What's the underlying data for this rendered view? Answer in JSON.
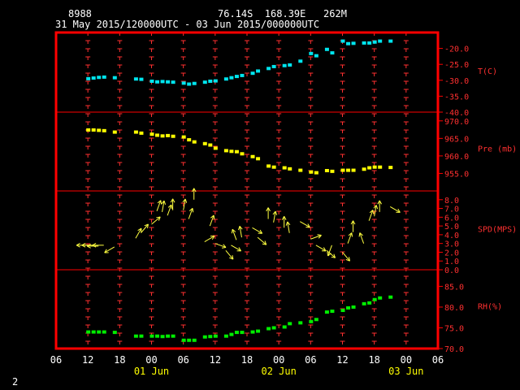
{
  "header": {
    "station_id": "8988",
    "location": "76.14S  168.39E   262M",
    "period": "31 May 2015/120000UTC - 03 Jun 2015/000000UTC"
  },
  "footer": {
    "page_number": "2"
  },
  "colors": {
    "frame": "#ff0000",
    "tick": "#ff3030",
    "temperature": "#00e5ee",
    "pressure": "#ffff00",
    "wind": "#ffff40",
    "humidity": "#00ee00",
    "axis_text": "#ff3030",
    "date_text": "#ffff00"
  },
  "x_axis": {
    "tick_labels": [
      "06",
      "12",
      "18",
      "00",
      "06",
      "12",
      "18",
      "00",
      "06",
      "12",
      "18",
      "00",
      "06"
    ],
    "tick_hours": [
      -6,
      0,
      6,
      12,
      18,
      24,
      30,
      36,
      42,
      48,
      54,
      60,
      66
    ],
    "date_labels": [
      {
        "text": "01 Jun",
        "hour": 12
      },
      {
        "text": "02 Jun",
        "hour": 36
      },
      {
        "text": "03 Jun",
        "hour": 60
      }
    ]
  },
  "chart_data": [
    {
      "type": "scatter",
      "ylabel": "T(C)",
      "ylim": [
        -40,
        -15
      ],
      "yticks": [
        -40,
        -35,
        -30,
        -25,
        -20
      ],
      "tick_labels": [
        "-40.0",
        "-35.0",
        "-30.0",
        "-25.0",
        "-20.0"
      ],
      "x": [
        0,
        1,
        2,
        3,
        5,
        9,
        10,
        12,
        13,
        14,
        15,
        16,
        18,
        19,
        20,
        22,
        23,
        24,
        26,
        27,
        28,
        29,
        31,
        32,
        34,
        35,
        37,
        38,
        40,
        42,
        43,
        45,
        46,
        48,
        49,
        50,
        52,
        53,
        54,
        55,
        57
      ],
      "y": [
        -29.5,
        -29.3,
        -29.1,
        -29.0,
        -29.2,
        -29.6,
        -29.7,
        -30.3,
        -30.5,
        -30.4,
        -30.5,
        -30.6,
        -30.9,
        -31.2,
        -31.0,
        -30.6,
        -30.3,
        -30.2,
        -29.6,
        -29.2,
        -28.8,
        -28.5,
        -27.8,
        -27.1,
        -26.3,
        -25.7,
        -25.4,
        -25.2,
        -24.0,
        -21.6,
        -22.3,
        -20.3,
        -21.4,
        -17.7,
        -18.5,
        -18.4,
        -18.3,
        -18.3,
        -18.0,
        -17.7,
        -17.7
      ]
    },
    {
      "type": "scatter",
      "ylabel": "Pre (mb)",
      "ylim": [
        950,
        972.5
      ],
      "yticks": [
        955,
        960,
        965,
        970
      ],
      "tick_labels": [
        "955.0",
        "960.0",
        "965.0",
        "970.0"
      ],
      "x": [
        0,
        1,
        2,
        3,
        5,
        9,
        10,
        12,
        13,
        14,
        15,
        16,
        18,
        19,
        20,
        22,
        23,
        24,
        26,
        27,
        28,
        29,
        31,
        32,
        34,
        35,
        37,
        38,
        40,
        42,
        43,
        45,
        46,
        48,
        49,
        50,
        52,
        53,
        54,
        55,
        57
      ],
      "y": [
        967.4,
        967.4,
        967.3,
        967.2,
        966.8,
        966.8,
        966.5,
        966.2,
        965.9,
        965.7,
        965.8,
        965.6,
        965.4,
        964.6,
        964.0,
        963.5,
        963.1,
        962.2,
        961.5,
        961.3,
        961.2,
        960.6,
        959.8,
        959.2,
        957.1,
        956.8,
        956.6,
        956.3,
        955.9,
        955.4,
        955.2,
        955.8,
        955.6,
        955.9,
        955.9,
        955.9,
        956.2,
        956.6,
        956.8,
        956.8,
        956.7
      ]
    },
    {
      "type": "scatter",
      "ylabel": "SPD(MPS)",
      "ylim": [
        0,
        9
      ],
      "yticks": [
        0,
        1,
        2,
        3,
        4,
        5,
        6,
        7,
        8
      ],
      "tick_labels": [
        "0.0",
        "1.0",
        "2.0",
        "3.0",
        "4.0",
        "5.0",
        "6.0",
        "7.0",
        "8.0"
      ],
      "x": [
        0,
        1,
        2,
        3,
        5,
        9,
        10,
        12,
        13,
        14,
        15,
        16,
        18,
        19,
        20,
        22,
        23,
        24,
        26,
        27,
        28,
        29,
        31,
        32,
        34,
        35,
        37,
        38,
        40,
        42,
        43,
        45,
        46,
        48,
        49,
        50,
        52,
        53,
        54,
        55,
        57
      ],
      "y": [
        2.8,
        2.8,
        2.7,
        2.8,
        2.6,
        3.6,
        4.2,
        5.2,
        6.7,
        6.6,
        6.2,
        6.8,
        6.8,
        5.8,
        8.0,
        3.2,
        5.0,
        3.0,
        2.2,
        2.8,
        3.4,
        3.7,
        4.8,
        3.7,
        5.8,
        5.4,
        4.8,
        4.2,
        5.5,
        3.5,
        2.8,
        2.2,
        2.8,
        2.0,
        3.0,
        4.3,
        3.0,
        5.6,
        6.1,
        6.6,
        7.2
      ],
      "dir_deg": [
        90,
        90,
        90,
        90,
        60,
        210,
        220,
        230,
        200,
        190,
        200,
        180,
        190,
        200,
        180,
        240,
        200,
        290,
        320,
        300,
        160,
        170,
        300,
        310,
        180,
        190,
        180,
        170,
        300,
        250,
        300,
        310,
        20,
        320,
        200,
        180,
        160,
        200,
        190,
        180,
        300
      ]
    },
    {
      "type": "scatter",
      "ylabel": "RH(%)",
      "ylim": [
        70,
        89
      ],
      "yticks": [
        70,
        75,
        80,
        85
      ],
      "tick_labels": [
        "70.0",
        "75.0",
        "80.0",
        "85.0"
      ],
      "x": [
        0,
        1,
        2,
        3,
        5,
        9,
        10,
        12,
        13,
        14,
        15,
        16,
        18,
        19,
        20,
        22,
        23,
        24,
        26,
        27,
        28,
        29,
        31,
        32,
        34,
        35,
        37,
        38,
        40,
        42,
        43,
        45,
        46,
        48,
        49,
        50,
        52,
        53,
        54,
        55,
        57
      ],
      "y": [
        74.0,
        74.0,
        74.0,
        74.0,
        73.9,
        73.0,
        73.0,
        73.0,
        73.0,
        72.9,
        73.0,
        73.0,
        72.0,
        72.0,
        72.0,
        72.8,
        72.9,
        73.0,
        73.0,
        73.4,
        73.9,
        73.9,
        74.0,
        74.2,
        74.8,
        75.0,
        75.2,
        76.0,
        76.2,
        76.5,
        77.0,
        78.8,
        79.0,
        79.2,
        79.8,
        80.0,
        80.8,
        81.0,
        81.8,
        82.2,
        82.4
      ]
    }
  ]
}
